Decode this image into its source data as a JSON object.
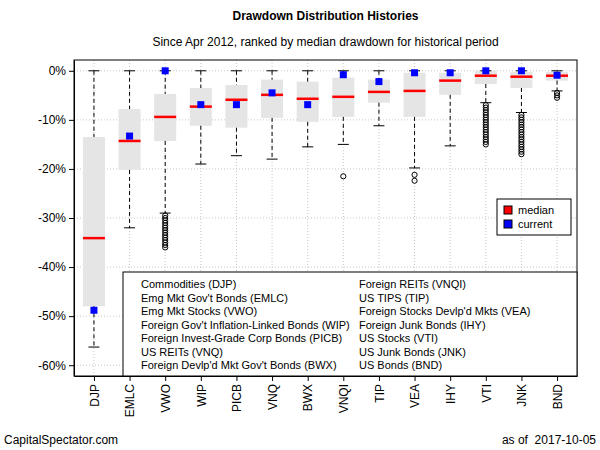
{
  "chart_data": {
    "type": "box",
    "title": "Drawdown Distribution Histories",
    "subtitle": "Since Apr 2012, ranked by median drawdown for historical period",
    "categories": [
      "DJP",
      "EMLC",
      "VWO",
      "WIP",
      "PICB",
      "VNQ",
      "BWX",
      "VNQI",
      "TIP",
      "VEA",
      "IHY",
      "VTI",
      "JNK",
      "BND"
    ],
    "category_names": [
      "Commodities (DJP)",
      "Emg Mkt Gov't Bonds (EMLC)",
      "Emg Mkt Stocks (VWO)",
      "Foreign Gov't Inflation-Linked Bonds (WIP)",
      "Foreign Invest-Grade Corp Bonds (PICB)",
      "US REITs (VNQ)",
      "Foreign Devlp'd Mkt Gov't Bonds (BWX)",
      "Foreign REITs (VNQI)",
      "US TIPS (TIP)",
      "Foreign Stocks Devlp'd Mkts (VEA)",
      "Foreign Junk Bonds (IHY)",
      "US Stocks (VTI)",
      "US Junk Bonds (JNK)",
      "US Bonds (BND)"
    ],
    "whisker_high": [
      0,
      0,
      0,
      0,
      0,
      0,
      0,
      0,
      0,
      0,
      0,
      0,
      0,
      0
    ],
    "q3": [
      -13.5,
      -7.8,
      -4.7,
      -3.5,
      -2.9,
      -1.8,
      -2.2,
      -1.4,
      -1.8,
      -0.4,
      -0.4,
      0,
      -0.2,
      -0.2
    ],
    "q1": [
      -48,
      -20.2,
      -14.3,
      -11.2,
      -11.6,
      -9.6,
      -10.4,
      -9.4,
      -6.5,
      -9.4,
      -4.9,
      -2.7,
      -3.5,
      -2.0
    ],
    "whisker_low": [
      -56.3,
      -32,
      -29,
      -19,
      -17.3,
      -18,
      -15.5,
      -15,
      -11.2,
      -19.8,
      -15.3,
      -6.5,
      -8.5,
      -4.1
    ],
    "outliers": [
      [],
      [],
      [
        -29.5,
        -30,
        -30.5,
        -31,
        -31.5,
        -32,
        -32.5,
        -33,
        -33.5,
        -34,
        -34.5,
        -35,
        -35.5,
        -36
      ],
      [],
      [],
      [],
      [],
      [
        -21.5
      ],
      [],
      [
        -21.2,
        -22.4
      ],
      [],
      [
        -7,
        -7.5,
        -8,
        -8.5,
        -9,
        -9.5,
        -10,
        -10.5,
        -11,
        -11.5,
        -12,
        -12.5,
        -13,
        -13.5,
        -14,
        -14.5,
        -15
      ],
      [
        -9,
        -9.5,
        -10,
        -10.5,
        -11,
        -11.5,
        -12,
        -12.5,
        -13,
        -13.5,
        -14,
        -14.5,
        -15,
        -15.5,
        -16,
        -16.5,
        -17
      ],
      [
        -4.5,
        -5,
        -5.5
      ]
    ],
    "series": [
      {
        "name": "median",
        "color": "#ff0000",
        "marker": "line",
        "values": [
          -34.1,
          -14.3,
          -9.4,
          -7.3,
          -5.9,
          -4.9,
          -5.7,
          -5.3,
          -4.3,
          -4.1,
          -2.0,
          -1.0,
          -1.2,
          -1.0
        ]
      },
      {
        "name": "current",
        "color": "#0000ff",
        "marker": "square",
        "values": [
          -48.8,
          -13.3,
          0,
          -6.9,
          -6.9,
          -4.5,
          -6.9,
          -0.8,
          -2.2,
          -0.4,
          -0.4,
          0,
          0,
          -0.9
        ]
      }
    ],
    "color": "#e5e5e5",
    "ylim": [
      -62.2,
      2.2
    ],
    "yticks": [
      {
        "value": 0,
        "label": "0%"
      },
      {
        "value": -10,
        "label": "-10%"
      },
      {
        "value": -20,
        "label": "-20%"
      },
      {
        "value": -30,
        "label": "-30%"
      },
      {
        "value": -40,
        "label": "-40%"
      },
      {
        "value": -50,
        "label": "-50%"
      },
      {
        "value": -60,
        "label": "-60%"
      }
    ],
    "grid": true,
    "legend": "right",
    "source": "CapitalSpectator.com",
    "date_note": "as of  2017-10-05"
  }
}
